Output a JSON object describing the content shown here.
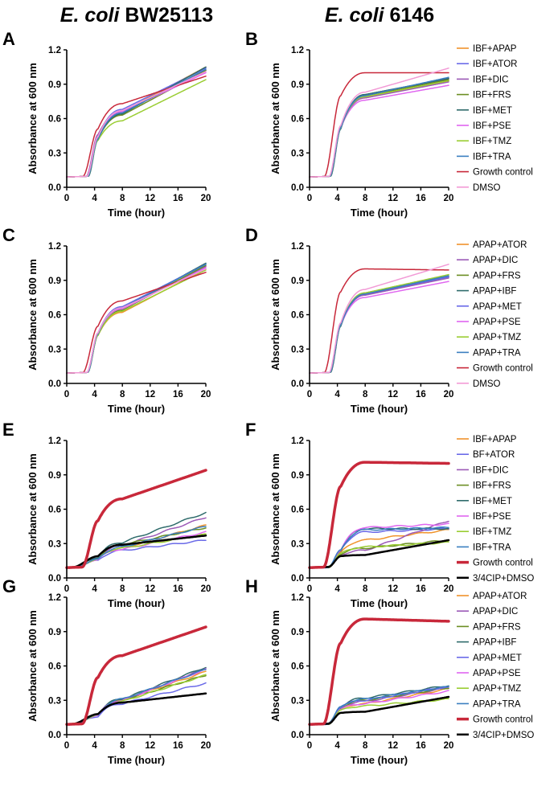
{
  "column_titles": [
    {
      "italic": "E. coli",
      "plain": " BW25113"
    },
    {
      "italic": "E. coli",
      "plain": " 6146"
    }
  ],
  "colors": {
    "IBF": "#f0932b",
    "APAP": "#f0932b",
    "ATOR": "#6a6ae8",
    "DIC": "#9b59b6",
    "FRS": "#6b8e23",
    "MET": "#2e6b6b",
    "PSE": "#e066f0",
    "TMZ": "#9acd32",
    "TRA": "#3a7ec0",
    "Growth": "#c8283a",
    "DMSO": "#f29ad6",
    "CIP": "#000000",
    "axis": "#000000"
  },
  "chart_data": [
    {
      "panel": "A",
      "type": "line",
      "xlabel": "Time (hour)",
      "ylabel": "Absorbance at 600 nm",
      "xlim": [
        0,
        20
      ],
      "ylim": [
        0,
        1.2
      ],
      "xticks": [
        0,
        4,
        8,
        12,
        16,
        20
      ],
      "yticks": [
        0.0,
        0.3,
        0.6,
        0.9,
        1.2
      ],
      "series": [
        {
          "name": "IBF+APAP",
          "color": "#f0932b",
          "width": 1.5,
          "lag": 3.7,
          "y4": 0.44,
          "y8": 0.66,
          "y20": 1.05
        },
        {
          "name": "IBF+ATOR",
          "color": "#6a6ae8",
          "width": 1.5,
          "lag": 3.7,
          "y4": 0.44,
          "y8": 0.68,
          "y20": 1.04
        },
        {
          "name": "IBF+DIC",
          "color": "#9b59b6",
          "width": 1.5,
          "lag": 3.6,
          "y4": 0.46,
          "y8": 0.66,
          "y20": 1.02
        },
        {
          "name": "IBF+FRS",
          "color": "#6b8e23",
          "width": 1.5,
          "lag": 3.8,
          "y4": 0.42,
          "y8": 0.63,
          "y20": 1.02
        },
        {
          "name": "IBF+MET",
          "color": "#2e6b6b",
          "width": 1.5,
          "lag": 3.9,
          "y4": 0.42,
          "y8": 0.64,
          "y20": 1.05
        },
        {
          "name": "IBF+PSE",
          "color": "#e066f0",
          "width": 1.5,
          "lag": 3.7,
          "y4": 0.44,
          "y8": 0.66,
          "y20": 1.0
        },
        {
          "name": "IBF+TMZ",
          "color": "#9acd32",
          "width": 1.5,
          "lag": 3.8,
          "y4": 0.41,
          "y8": 0.58,
          "y20": 0.94
        },
        {
          "name": "IBF+TRA",
          "color": "#3a7ec0",
          "width": 1.5,
          "lag": 3.8,
          "y4": 0.42,
          "y8": 0.65,
          "y20": 1.03
        },
        {
          "name": "Growth control",
          "color": "#c8283a",
          "width": 1.5,
          "lag": 3.1,
          "y4": 0.51,
          "y8": 0.73,
          "y20": 0.97
        },
        {
          "name": "DMSO",
          "color": "#f29ad6",
          "width": 1.5,
          "lag": 3.7,
          "y4": 0.44,
          "y8": 0.67,
          "y20": 1.01
        }
      ]
    },
    {
      "panel": "B",
      "type": "line",
      "xlabel": "Time (hour)",
      "ylabel": "Absorbance at 600 nm",
      "xlim": [
        0,
        20
      ],
      "ylim": [
        0,
        1.2
      ],
      "xticks": [
        0,
        4,
        8,
        12,
        16,
        20
      ],
      "yticks": [
        0.0,
        0.3,
        0.6,
        0.9,
        1.2
      ],
      "series": [
        {
          "name": "IBF+APAP",
          "color": "#f0932b",
          "width": 1.5,
          "lag": 3.7,
          "y4": 0.52,
          "y8": 0.78,
          "y20": 0.93
        },
        {
          "name": "IBF+ATOR",
          "color": "#6a6ae8",
          "width": 1.5,
          "lag": 3.7,
          "y4": 0.52,
          "y8": 0.8,
          "y20": 0.95
        },
        {
          "name": "IBF+DIC",
          "color": "#9b59b6",
          "width": 1.5,
          "lag": 3.7,
          "y4": 0.52,
          "y8": 0.78,
          "y20": 0.92
        },
        {
          "name": "IBF+FRS",
          "color": "#6b8e23",
          "width": 1.5,
          "lag": 3.7,
          "y4": 0.52,
          "y8": 0.8,
          "y20": 0.94
        },
        {
          "name": "IBF+MET",
          "color": "#2e6b6b",
          "width": 1.5,
          "lag": 3.8,
          "y4": 0.51,
          "y8": 0.81,
          "y20": 0.95
        },
        {
          "name": "IBF+PSE",
          "color": "#e066f0",
          "width": 1.5,
          "lag": 3.7,
          "y4": 0.52,
          "y8": 0.76,
          "y20": 0.89
        },
        {
          "name": "IBF+TMZ",
          "color": "#9acd32",
          "width": 1.5,
          "lag": 3.7,
          "y4": 0.52,
          "y8": 0.79,
          "y20": 0.93
        },
        {
          "name": "IBF+TRA",
          "color": "#3a7ec0",
          "width": 1.5,
          "lag": 3.7,
          "y4": 0.52,
          "y8": 0.8,
          "y20": 0.96
        },
        {
          "name": "Growth control",
          "color": "#c8283a",
          "width": 1.5,
          "lag": 2.9,
          "y4": 0.8,
          "y8": 1.0,
          "y20": 1.0
        },
        {
          "name": "DMSO",
          "color": "#f29ad6",
          "width": 1.5,
          "lag": 3.6,
          "y4": 0.54,
          "y8": 0.83,
          "y20": 1.04
        }
      ]
    },
    {
      "panel": "C",
      "type": "line",
      "xlabel": "Time (hour)",
      "ylabel": "Absorbance at 600 nm",
      "xlim": [
        0,
        20
      ],
      "ylim": [
        0,
        1.2
      ],
      "xticks": [
        0,
        4,
        8,
        12,
        16,
        20
      ],
      "yticks": [
        0.0,
        0.3,
        0.6,
        0.9,
        1.2
      ],
      "series": [
        {
          "name": "APAP+ATOR",
          "color": "#f0932b",
          "width": 1.5,
          "lag": 3.8,
          "y4": 0.42,
          "y8": 0.62,
          "y20": 1.0
        },
        {
          "name": "APAP+DIC",
          "color": "#9b59b6",
          "width": 1.5,
          "lag": 3.7,
          "y4": 0.44,
          "y8": 0.66,
          "y20": 1.02
        },
        {
          "name": "APAP+FRS",
          "color": "#6b8e23",
          "width": 1.5,
          "lag": 3.8,
          "y4": 0.42,
          "y8": 0.64,
          "y20": 1.03
        },
        {
          "name": "APAP+IBF",
          "color": "#2e6b6b",
          "width": 1.5,
          "lag": 3.8,
          "y4": 0.43,
          "y8": 0.65,
          "y20": 1.05
        },
        {
          "name": "APAP+MET",
          "color": "#6a6ae8",
          "width": 1.5,
          "lag": 3.7,
          "y4": 0.44,
          "y8": 0.67,
          "y20": 1.04
        },
        {
          "name": "APAP+PSE",
          "color": "#e066f0",
          "width": 1.5,
          "lag": 3.7,
          "y4": 0.43,
          "y8": 0.65,
          "y20": 1.01
        },
        {
          "name": "APAP+TMZ",
          "color": "#9acd32",
          "width": 1.5,
          "lag": 3.8,
          "y4": 0.42,
          "y8": 0.63,
          "y20": 0.99
        },
        {
          "name": "APAP+TRA",
          "color": "#3a7ec0",
          "width": 1.5,
          "lag": 3.8,
          "y4": 0.43,
          "y8": 0.66,
          "y20": 1.04
        },
        {
          "name": "Growth control",
          "color": "#c8283a",
          "width": 1.5,
          "lag": 3.1,
          "y4": 0.5,
          "y8": 0.72,
          "y20": 0.97
        },
        {
          "name": "DMSO",
          "color": "#f29ad6",
          "width": 1.5,
          "lag": 3.7,
          "y4": 0.44,
          "y8": 0.66,
          "y20": 1.0
        }
      ]
    },
    {
      "panel": "D",
      "type": "line",
      "xlabel": "Time (hour)",
      "ylabel": "Absorbance at 600 nm",
      "xlim": [
        0,
        20
      ],
      "ylim": [
        0,
        1.2
      ],
      "xticks": [
        0,
        4,
        8,
        12,
        16,
        20
      ],
      "yticks": [
        0.0,
        0.3,
        0.6,
        0.9,
        1.2
      ],
      "series": [
        {
          "name": "APAP+ATOR",
          "color": "#f0932b",
          "width": 1.5,
          "lag": 3.7,
          "y4": 0.51,
          "y8": 0.78,
          "y20": 0.93
        },
        {
          "name": "APAP+DIC",
          "color": "#9b59b6",
          "width": 1.5,
          "lag": 3.7,
          "y4": 0.51,
          "y8": 0.77,
          "y20": 0.92
        },
        {
          "name": "APAP+FRS",
          "color": "#6b8e23",
          "width": 1.5,
          "lag": 3.7,
          "y4": 0.51,
          "y8": 0.79,
          "y20": 0.94
        },
        {
          "name": "APAP+IBF",
          "color": "#2e6b6b",
          "width": 1.5,
          "lag": 3.8,
          "y4": 0.5,
          "y8": 0.78,
          "y20": 0.93
        },
        {
          "name": "APAP+MET",
          "color": "#6a6ae8",
          "width": 1.5,
          "lag": 3.7,
          "y4": 0.51,
          "y8": 0.78,
          "y20": 0.93
        },
        {
          "name": "APAP+PSE",
          "color": "#e066f0",
          "width": 1.5,
          "lag": 3.7,
          "y4": 0.51,
          "y8": 0.75,
          "y20": 0.89
        },
        {
          "name": "APAP+TMZ",
          "color": "#9acd32",
          "width": 1.5,
          "lag": 3.7,
          "y4": 0.51,
          "y8": 0.79,
          "y20": 0.95
        },
        {
          "name": "APAP+TRA",
          "color": "#3a7ec0",
          "width": 1.5,
          "lag": 3.7,
          "y4": 0.51,
          "y8": 0.78,
          "y20": 0.94
        },
        {
          "name": "Growth control",
          "color": "#c8283a",
          "width": 1.5,
          "lag": 2.9,
          "y4": 0.8,
          "y8": 1.0,
          "y20": 0.99
        },
        {
          "name": "DMSO",
          "color": "#f29ad6",
          "width": 1.5,
          "lag": 3.6,
          "y4": 0.53,
          "y8": 0.82,
          "y20": 1.04
        }
      ]
    },
    {
      "panel": "E",
      "type": "line",
      "xlabel": "Time (hour)",
      "ylabel": "Absorbance at 600 nm",
      "xlim": [
        0,
        20
      ],
      "ylim": [
        0,
        1.2
      ],
      "xticks": [
        0,
        4,
        8,
        12,
        16,
        20
      ],
      "yticks": [
        0.0,
        0.3,
        0.6,
        0.9,
        1.2
      ],
      "series": [
        {
          "name": "IBF+APAP",
          "color": "#f0932b",
          "width": 1.5,
          "lag": 1.5,
          "y4": 0.16,
          "y8": 0.26,
          "y20": 0.46
        },
        {
          "name": "IBF+ATOR",
          "color": "#6a6ae8",
          "width": 1.5,
          "lag": 1.5,
          "y4": 0.15,
          "y8": 0.24,
          "y20": 0.33
        },
        {
          "name": "IBF+DIC",
          "color": "#9b59b6",
          "width": 1.5,
          "lag": 1.5,
          "y4": 0.17,
          "y8": 0.28,
          "y20": 0.53
        },
        {
          "name": "IBF+FRS",
          "color": "#6b8e23",
          "width": 1.5,
          "lag": 1.5,
          "y4": 0.17,
          "y8": 0.29,
          "y20": 0.44
        },
        {
          "name": "IBF+MET",
          "color": "#2e6b6b",
          "width": 1.5,
          "lag": 1.5,
          "y4": 0.18,
          "y8": 0.31,
          "y20": 0.57
        },
        {
          "name": "IBF+PSE",
          "color": "#e066f0",
          "width": 1.5,
          "lag": 1.5,
          "y4": 0.16,
          "y8": 0.25,
          "y20": 0.4
        },
        {
          "name": "IBF+TMZ",
          "color": "#9acd32",
          "width": 1.5,
          "lag": 1.5,
          "y4": 0.16,
          "y8": 0.26,
          "y20": 0.38
        },
        {
          "name": "IBF+TRA",
          "color": "#3a7ec0",
          "width": 1.5,
          "lag": 1.5,
          "y4": 0.16,
          "y8": 0.27,
          "y20": 0.45
        },
        {
          "name": "Growth control",
          "color": "#c8283a",
          "width": 3.5,
          "lag": 3.0,
          "y4": 0.5,
          "y8": 0.69,
          "y20": 0.94
        },
        {
          "name": "3/4CIP+DMSO",
          "color": "#000000",
          "width": 2.5,
          "lag": 1.5,
          "y4": 0.19,
          "y8": 0.29,
          "y20": 0.37
        }
      ]
    },
    {
      "panel": "F",
      "type": "line",
      "xlabel": "Time (hour)",
      "ylabel": "Absorbance at 600 nm",
      "xlim": [
        0,
        20
      ],
      "ylim": [
        0,
        1.2
      ],
      "xticks": [
        0,
        4,
        8,
        12,
        16,
        20
      ],
      "yticks": [
        0.0,
        0.3,
        0.6,
        0.9,
        1.2
      ],
      "series": [
        {
          "name": "IBF+APAP",
          "color": "#f0932b",
          "width": 1.5,
          "lag": 3.5,
          "y4": 0.22,
          "y8": 0.33,
          "y20": 0.42
        },
        {
          "name": "BF+ATOR",
          "color": "#6a6ae8",
          "width": 1.5,
          "lag": 3.5,
          "y4": 0.24,
          "y8": 0.4,
          "y20": 0.43
        },
        {
          "name": "IBF+DIC",
          "color": "#9b59b6",
          "width": 1.5,
          "lag": 3.5,
          "y4": 0.2,
          "y8": 0.24,
          "y20": 0.5
        },
        {
          "name": "IBF+FRS",
          "color": "#6b8e23",
          "width": 1.5,
          "lag": 3.5,
          "y4": 0.21,
          "y8": 0.26,
          "y20": 0.33
        },
        {
          "name": "IBF+MET",
          "color": "#2e6b6b",
          "width": 1.5,
          "lag": 3.5,
          "y4": 0.24,
          "y8": 0.43,
          "y20": 0.43
        },
        {
          "name": "IBF+PSE",
          "color": "#e066f0",
          "width": 1.5,
          "lag": 3.5,
          "y4": 0.24,
          "y8": 0.44,
          "y20": 0.47
        },
        {
          "name": "IBF+TMZ",
          "color": "#9acd32",
          "width": 1.5,
          "lag": 3.5,
          "y4": 0.21,
          "y8": 0.27,
          "y20": 0.31
        },
        {
          "name": "IBF+TRA",
          "color": "#3a7ec0",
          "width": 1.5,
          "lag": 3.5,
          "y4": 0.24,
          "y8": 0.42,
          "y20": 0.44
        },
        {
          "name": "Growth control",
          "color": "#c8283a",
          "width": 3.5,
          "lag": 2.8,
          "y4": 0.8,
          "y8": 1.01,
          "y20": 1.0
        },
        {
          "name": "3/4CIP+DMSO",
          "color": "#000000",
          "width": 2.5,
          "lag": 3.5,
          "y4": 0.19,
          "y8": 0.2,
          "y20": 0.33
        }
      ]
    },
    {
      "panel": "G",
      "type": "line",
      "xlabel": "Time (hour)",
      "ylabel": "Absorbance at 600 nm",
      "xlim": [
        0,
        20
      ],
      "ylim": [
        0,
        1.2
      ],
      "xticks": [
        0,
        4,
        8,
        12,
        16,
        20
      ],
      "yticks": [
        0.0,
        0.3,
        0.6,
        0.9,
        1.2
      ],
      "series": [
        {
          "name": "APAP+ATOR",
          "color": "#f0932b",
          "width": 1.5,
          "lag": 1.5,
          "y4": 0.17,
          "y8": 0.3,
          "y20": 0.55
        },
        {
          "name": "APAP+DIC",
          "color": "#9b59b6",
          "width": 1.5,
          "lag": 1.5,
          "y4": 0.17,
          "y8": 0.3,
          "y20": 0.58
        },
        {
          "name": "APAP+FRS",
          "color": "#6b8e23",
          "width": 1.5,
          "lag": 1.5,
          "y4": 0.17,
          "y8": 0.3,
          "y20": 0.52
        },
        {
          "name": "APAP+IBF",
          "color": "#2e6b6b",
          "width": 1.5,
          "lag": 1.5,
          "y4": 0.18,
          "y8": 0.31,
          "y20": 0.59
        },
        {
          "name": "APAP+MET",
          "color": "#6a6ae8",
          "width": 1.5,
          "lag": 1.5,
          "y4": 0.16,
          "y8": 0.27,
          "y20": 0.45
        },
        {
          "name": "APAP+PSE",
          "color": "#e066f0",
          "width": 1.5,
          "lag": 1.5,
          "y4": 0.17,
          "y8": 0.3,
          "y20": 0.57
        },
        {
          "name": "APAP+TMZ",
          "color": "#9acd32",
          "width": 1.5,
          "lag": 1.5,
          "y4": 0.17,
          "y8": 0.29,
          "y20": 0.52
        },
        {
          "name": "APAP+TRA",
          "color": "#3a7ec0",
          "width": 1.5,
          "lag": 1.5,
          "y4": 0.17,
          "y8": 0.31,
          "y20": 0.57
        },
        {
          "name": "Growth control",
          "color": "#c8283a",
          "width": 3.5,
          "lag": 3.0,
          "y4": 0.5,
          "y8": 0.69,
          "y20": 0.94
        },
        {
          "name": "3/4CIP+DMSO",
          "color": "#000000",
          "width": 2.5,
          "lag": 1.5,
          "y4": 0.18,
          "y8": 0.28,
          "y20": 0.36
        }
      ]
    },
    {
      "panel": "H",
      "type": "line",
      "xlabel": "Time (hour)",
      "ylabel": "Absorbance at 600 nm",
      "xlim": [
        0,
        20
      ],
      "ylim": [
        0,
        1.2
      ],
      "xticks": [
        0,
        4,
        8,
        12,
        16,
        20
      ],
      "yticks": [
        0.0,
        0.3,
        0.6,
        0.9,
        1.2
      ],
      "series": [
        {
          "name": "APAP+ATOR",
          "color": "#f0932b",
          "width": 1.5,
          "lag": 3.5,
          "y4": 0.22,
          "y8": 0.27,
          "y20": 0.4
        },
        {
          "name": "APAP+DIC",
          "color": "#9b59b6",
          "width": 1.5,
          "lag": 3.5,
          "y4": 0.23,
          "y8": 0.29,
          "y20": 0.41
        },
        {
          "name": "APAP+FRS",
          "color": "#6b8e23",
          "width": 1.5,
          "lag": 3.5,
          "y4": 0.23,
          "y8": 0.3,
          "y20": 0.41
        },
        {
          "name": "APAP+IBF",
          "color": "#2e6b6b",
          "width": 1.5,
          "lag": 3.5,
          "y4": 0.24,
          "y8": 0.32,
          "y20": 0.43
        },
        {
          "name": "APAP+MET",
          "color": "#6a6ae8",
          "width": 1.5,
          "lag": 3.5,
          "y4": 0.24,
          "y8": 0.3,
          "y20": 0.42
        },
        {
          "name": "APAP+PSE",
          "color": "#e066f0",
          "width": 1.5,
          "lag": 3.5,
          "y4": 0.22,
          "y8": 0.27,
          "y20": 0.38
        },
        {
          "name": "APAP+TMZ",
          "color": "#9acd32",
          "width": 1.5,
          "lag": 3.5,
          "y4": 0.21,
          "y8": 0.25,
          "y20": 0.31
        },
        {
          "name": "APAP+TRA",
          "color": "#3a7ec0",
          "width": 1.5,
          "lag": 3.5,
          "y4": 0.24,
          "y8": 0.31,
          "y20": 0.42
        },
        {
          "name": "Growth control",
          "color": "#c8283a",
          "width": 3.5,
          "lag": 2.8,
          "y4": 0.8,
          "y8": 1.01,
          "y20": 0.99
        },
        {
          "name": "3/4CIP+DMSO",
          "color": "#000000",
          "width": 2.5,
          "lag": 3.5,
          "y4": 0.19,
          "y8": 0.2,
          "y20": 0.33
        }
      ]
    }
  ]
}
